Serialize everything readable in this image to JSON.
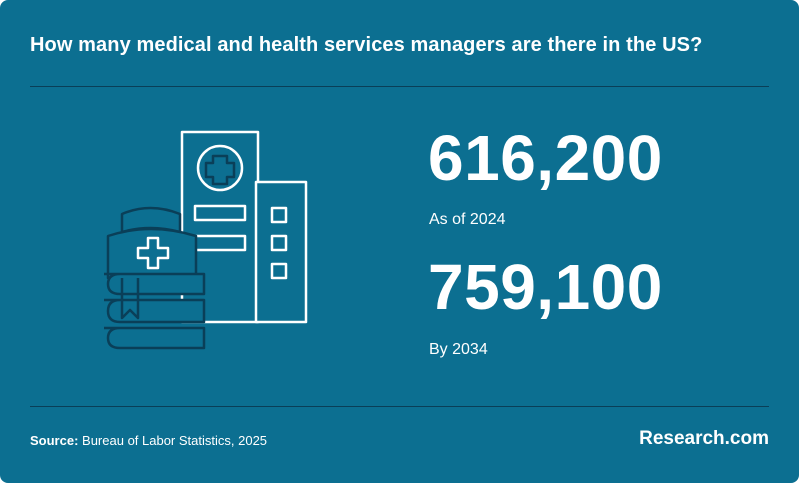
{
  "title": "How many medical and health services managers are there in the US?",
  "stats": [
    {
      "value": "616,200",
      "label": "As of 2024"
    },
    {
      "value": "759,100",
      "label": "By 2034"
    }
  ],
  "source": {
    "label": "Source:",
    "text": "Bureau of Labor Statistics, 2025"
  },
  "brand": "Research.com",
  "illustration_icons": [
    "hospital-building-icon",
    "medical-cross-icon",
    "nurse-cap-icon",
    "books-stack-icon"
  ],
  "colors": {
    "background": "#0c6f91",
    "text": "#ffffff",
    "icon_stroke": "#ffffff",
    "icon_fill": "#0a3f58",
    "rule": "#0a3f58"
  }
}
